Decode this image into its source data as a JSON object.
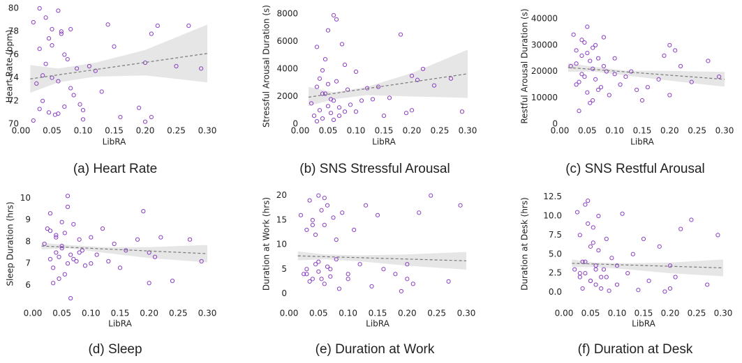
{
  "chart_data": [
    {
      "type": "scatter",
      "caption": "(a) Heart Rate",
      "xlabel": "LibRA",
      "ylabel": "Heart Rate (bpm)",
      "color": "#8a3fc2",
      "x": [
        0.02,
        0.025,
        0.03,
        0.03,
        0.035,
        0.04,
        0.04,
        0.045,
        0.05,
        0.05,
        0.055,
        0.06,
        0.06,
        0.065,
        0.07,
        0.07,
        0.075,
        0.08,
        0.085,
        0.09,
        0.095,
        0.1,
        0.03,
        0.05,
        0.06,
        0.045,
        0.035,
        0.08,
        0.1,
        0.11,
        0.12,
        0.13,
        0.14,
        0.15,
        0.16,
        0.19,
        0.2,
        0.2,
        0.21,
        0.21,
        0.22,
        0.25,
        0.27,
        0.29,
        0.02,
        0.065
      ],
      "values": [
        78.8,
        73.5,
        80,
        76.5,
        72,
        79.2,
        75.2,
        71,
        78.2,
        74,
        70.8,
        79.8,
        73.7,
        77.8,
        76,
        71.5,
        75.6,
        78.2,
        72.5,
        74.8,
        71.7,
        70.4,
        71.3,
        76.8,
        70.9,
        77.4,
        74.2,
        73.1,
        71.2,
        75,
        74.6,
        72.8,
        78.6,
        76.7,
        70.6,
        71.4,
        70.2,
        75.3,
        77.8,
        70.6,
        78.5,
        75,
        78.5,
        74.8,
        70.3,
        78
      ],
      "trend_x": [
        0.015,
        0.3
      ],
      "trend_y": [
        73.9,
        76.1
      ],
      "band_x": [
        0.015,
        0.06,
        0.12,
        0.2,
        0.3
      ],
      "band_lower": [
        72.7,
        73.6,
        74.1,
        74.2,
        73.6
      ],
      "band_upper": [
        75.1,
        74.8,
        75.3,
        76.4,
        78.6
      ],
      "xlim": [
        0,
        0.3
      ],
      "ylim": [
        70,
        80
      ],
      "xticks": [
        {
          "value": 0,
          "label": "0.00"
        },
        {
          "value": 0.05,
          "label": "0.05"
        },
        {
          "value": 0.1,
          "label": "0.10"
        },
        {
          "value": 0.15,
          "label": "0.15"
        },
        {
          "value": 0.2,
          "label": "0.20"
        },
        {
          "value": 0.25,
          "label": "0.25"
        },
        {
          "value": 0.3,
          "label": "0.30"
        }
      ],
      "yticks": [
        70,
        72,
        74,
        76,
        78,
        80
      ]
    },
    {
      "type": "scatter",
      "caption": "(b) SNS Stressful Arousal",
      "xlabel": "LibRA",
      "ylabel": "Stressful Arousal Duration (s)",
      "color": "#8a3fc2",
      "x": [
        0.02,
        0.025,
        0.03,
        0.03,
        0.035,
        0.04,
        0.04,
        0.045,
        0.05,
        0.05,
        0.055,
        0.06,
        0.06,
        0.065,
        0.065,
        0.07,
        0.075,
        0.08,
        0.085,
        0.09,
        0.03,
        0.045,
        0.05,
        0.055,
        0.06,
        0.07,
        0.04,
        0.035,
        0.08,
        0.1,
        0.1,
        0.11,
        0.12,
        0.13,
        0.14,
        0.15,
        0.16,
        0.18,
        0.19,
        0.2,
        0.2,
        0.21,
        0.22,
        0.24,
        0.27,
        0.29
      ],
      "values": [
        1500,
        600,
        2700,
        5600,
        1000,
        3900,
        400,
        2200,
        6800,
        1300,
        1800,
        7900,
        300,
        3100,
        7600,
        1200,
        5800,
        900,
        2500,
        1400,
        200,
        4700,
        2900,
        800,
        1700,
        600,
        2200,
        3300,
        4300,
        3800,
        900,
        1700,
        2600,
        1800,
        2700,
        600,
        1900,
        6500,
        800,
        1000,
        3500,
        3200,
        4000,
        2800,
        3300,
        900
      ],
      "trend_x": [
        0.015,
        0.3
      ],
      "trend_y": [
        1950,
        3650
      ],
      "band_x": [
        0.015,
        0.06,
        0.12,
        0.2,
        0.3
      ],
      "band_lower": [
        1300,
        1800,
        2100,
        2000,
        1900
      ],
      "band_upper": [
        2700,
        2300,
        2700,
        3700,
        5400
      ],
      "xlim": [
        0,
        0.3
      ],
      "ylim": [
        0,
        8400
      ],
      "xticks": [
        {
          "value": 0,
          "label": "0.00"
        },
        {
          "value": 0.05,
          "label": "0.05"
        },
        {
          "value": 0.1,
          "label": "0.10"
        },
        {
          "value": 0.15,
          "label": "0.15"
        },
        {
          "value": 0.2,
          "label": "0.20"
        },
        {
          "value": 0.25,
          "label": "0.25"
        },
        {
          "value": 0.3,
          "label": "0.30"
        }
      ],
      "yticks": [
        0,
        2000,
        4000,
        6000,
        8000
      ]
    },
    {
      "type": "scatter",
      "caption": "(c) SNS Restful Arousal",
      "xlabel": "LibRA",
      "ylabel": "Restful Arousal Duration (s)",
      "color": "#8a3fc2",
      "x": [
        0.02,
        0.025,
        0.03,
        0.03,
        0.035,
        0.04,
        0.04,
        0.045,
        0.05,
        0.05,
        0.055,
        0.06,
        0.06,
        0.065,
        0.065,
        0.07,
        0.075,
        0.08,
        0.085,
        0.09,
        0.03,
        0.045,
        0.05,
        0.055,
        0.06,
        0.07,
        0.04,
        0.035,
        0.08,
        0.1,
        0.1,
        0.11,
        0.12,
        0.13,
        0.14,
        0.15,
        0.16,
        0.18,
        0.19,
        0.2,
        0.2,
        0.21,
        0.22,
        0.24,
        0.27,
        0.29
      ],
      "values": [
        22000,
        34000,
        15000,
        28000,
        5000,
        26000,
        19000,
        31000,
        37000,
        12000,
        24000,
        21000,
        9000,
        30000,
        17000,
        25000,
        14000,
        33000,
        20000,
        11000,
        23000,
        18000,
        27000,
        8000,
        29000,
        13000,
        32000,
        16000,
        22000,
        25000,
        19000,
        15000,
        18000,
        20000,
        13000,
        9000,
        14000,
        17000,
        26000,
        11000,
        30000,
        28000,
        22000,
        16000,
        24000,
        18000
      ],
      "trend_x": [
        0.015,
        0.3
      ],
      "trend_y": [
        21500,
        17000
      ],
      "band_x": [
        0.015,
        0.06,
        0.12,
        0.2,
        0.3
      ],
      "band_lower": [
        19800,
        20000,
        18500,
        16500,
        14200
      ],
      "band_upper": [
        23200,
        21800,
        20300,
        20200,
        19800
      ],
      "xlim": [
        0,
        0.3
      ],
      "ylim": [
        0,
        44000
      ],
      "xticks": [
        {
          "value": 0,
          "label": "0.00"
        },
        {
          "value": 0.05,
          "label": "0.05"
        },
        {
          "value": 0.1,
          "label": "0.10"
        },
        {
          "value": 0.15,
          "label": "0.15"
        },
        {
          "value": 0.2,
          "label": "0.20"
        },
        {
          "value": 0.25,
          "label": "0.25"
        },
        {
          "value": 0.3,
          "label": "0.30"
        }
      ],
      "yticks": [
        0,
        10000,
        20000,
        30000,
        40000
      ]
    },
    {
      "type": "scatter",
      "caption": "(d) Sleep",
      "xlabel": "LibRA",
      "ylabel": "Sleep Duration (hrs)",
      "color": "#8a3fc2",
      "x": [
        0.02,
        0.025,
        0.03,
        0.03,
        0.035,
        0.04,
        0.04,
        0.045,
        0.05,
        0.05,
        0.055,
        0.06,
        0.06,
        0.065,
        0.065,
        0.07,
        0.075,
        0.08,
        0.085,
        0.09,
        0.03,
        0.045,
        0.05,
        0.055,
        0.06,
        0.07,
        0.04,
        0.035,
        0.08,
        0.1,
        0.1,
        0.11,
        0.12,
        0.13,
        0.14,
        0.15,
        0.16,
        0.18,
        0.19,
        0.2,
        0.2,
        0.21,
        0.22,
        0.24,
        0.27,
        0.29
      ],
      "values": [
        7.9,
        8.6,
        7.2,
        9.3,
        6.8,
        8.2,
        7.5,
        6.3,
        8.9,
        7.7,
        8.4,
        7,
        10.1,
        7.4,
        5.4,
        8.8,
        7.1,
        8.1,
        7.6,
        6.9,
        8.5,
        7.3,
        7.8,
        6.5,
        9.6,
        7.2,
        8.3,
        6.1,
        7.5,
        7,
        8.2,
        7.4,
        8.6,
        7.1,
        7.9,
        6.8,
        7.6,
        8.1,
        9.4,
        6.1,
        7.5,
        7.3,
        8.2,
        6.2,
        8.1,
        7.1
      ],
      "trend_x": [
        0.015,
        0.3
      ],
      "trend_y": [
        7.8,
        7.45
      ],
      "band_x": [
        0.015,
        0.06,
        0.12,
        0.2,
        0.3
      ],
      "band_lower": [
        7.65,
        7.7,
        7.5,
        7.25,
        7.05
      ],
      "band_upper": [
        7.95,
        7.85,
        7.75,
        7.75,
        7.85
      ],
      "xlim": [
        0,
        0.3
      ],
      "ylim": [
        5.5,
        10.3
      ],
      "xticks": [
        {
          "value": 0,
          "label": "0.00"
        },
        {
          "value": 0.05,
          "label": "0.05"
        },
        {
          "value": 0.1,
          "label": "0.10"
        },
        {
          "value": 0.15,
          "label": "0.15"
        },
        {
          "value": 0.2,
          "label": "0.20"
        },
        {
          "value": 0.25,
          "label": "0.25"
        },
        {
          "value": 0.3,
          "label": "0.30"
        }
      ],
      "yticks": [
        6,
        7,
        8,
        9,
        10
      ]
    },
    {
      "type": "scatter",
      "caption": "(e) Duration at Work",
      "xlabel": "LibRA",
      "ylabel": "Duration at Work (hrs)",
      "color": "#8a3fc2",
      "x": [
        0.02,
        0.025,
        0.03,
        0.03,
        0.035,
        0.04,
        0.04,
        0.045,
        0.05,
        0.05,
        0.055,
        0.06,
        0.06,
        0.065,
        0.065,
        0.07,
        0.075,
        0.08,
        0.085,
        0.09,
        0.03,
        0.045,
        0.05,
        0.055,
        0.06,
        0.07,
        0.04,
        0.035,
        0.08,
        0.1,
        0.1,
        0.11,
        0.12,
        0.13,
        0.14,
        0.15,
        0.16,
        0.18,
        0.19,
        0.2,
        0.2,
        0.21,
        0.22,
        0.24,
        0.27,
        0.29
      ],
      "values": [
        16,
        4,
        13,
        5,
        19,
        3,
        15,
        6,
        20,
        4.5,
        17,
        2,
        14,
        5.5,
        18,
        3.5,
        15.5,
        7,
        1,
        16.5,
        4,
        12,
        6.5,
        3,
        19.5,
        5,
        14,
        2.5,
        11,
        4,
        3,
        13,
        6,
        18,
        1.5,
        16,
        5,
        4,
        0.5,
        3,
        6,
        2,
        16.5,
        20,
        2.5,
        18
      ],
      "trend_x": [
        0.015,
        0.3
      ],
      "trend_y": [
        7.7,
        6.7
      ],
      "band_x": [
        0.015,
        0.06,
        0.12,
        0.2,
        0.3
      ],
      "band_lower": [
        6.8,
        7,
        6.6,
        5.7,
        4.9
      ],
      "band_upper": [
        8.6,
        8,
        7.8,
        8,
        8.5
      ],
      "xlim": [
        0,
        0.3
      ],
      "ylim": [
        -0.5,
        20.8
      ],
      "xticks": [
        {
          "value": 0,
          "label": "0.00"
        },
        {
          "value": 0.05,
          "label": "0.05"
        },
        {
          "value": 0.1,
          "label": "0.10"
        },
        {
          "value": 0.15,
          "label": "0.15"
        },
        {
          "value": 0.2,
          "label": "0.20"
        },
        {
          "value": 0.25,
          "label": "0.25"
        },
        {
          "value": 0.3,
          "label": "0.30"
        }
      ],
      "yticks": [
        0,
        5,
        10,
        15,
        20
      ]
    },
    {
      "type": "scatter",
      "caption": "(f) Duration at Desk",
      "xlabel": "LibRA",
      "ylabel": "Duration at Desk (hrs)",
      "color": "#8a3fc2",
      "x": [
        0.02,
        0.025,
        0.03,
        0.03,
        0.035,
        0.04,
        0.04,
        0.045,
        0.05,
        0.05,
        0.055,
        0.06,
        0.06,
        0.065,
        0.065,
        0.07,
        0.075,
        0.08,
        0.085,
        0.09,
        0.03,
        0.045,
        0.05,
        0.055,
        0.06,
        0.07,
        0.04,
        0.035,
        0.08,
        0.1,
        0.1,
        0.11,
        0.12,
        0.13,
        0.14,
        0.15,
        0.16,
        0.18,
        0.19,
        0.2,
        0.2,
        0.21,
        0.22,
        0.24,
        0.27,
        0.29
      ],
      "values": [
        3,
        10.5,
        2,
        7.5,
        0.5,
        4,
        2.5,
        12,
        6,
        1.5,
        8.5,
        3.5,
        1,
        5.5,
        10,
        2,
        3,
        7,
        0.2,
        4.5,
        2.5,
        9,
        1.5,
        6.5,
        3,
        0.5,
        11.5,
        4,
        2,
        3.5,
        1,
        10.3,
        2.5,
        5,
        0.3,
        7,
        1.5,
        6,
        0.1,
        3.5,
        0.5,
        2,
        8.3,
        9.5,
        1,
        7.5
      ],
      "trend_x": [
        0.015,
        0.3
      ],
      "trend_y": [
        3.8,
        3.2
      ],
      "band_x": [
        0.015,
        0.06,
        0.12,
        0.2,
        0.3
      ],
      "band_lower": [
        3.3,
        3.3,
        3,
        2.5,
        2.1
      ],
      "band_upper": [
        4.3,
        3.9,
        3.8,
        3.9,
        4.3
      ],
      "xlim": [
        0,
        0.3
      ],
      "ylim": [
        -0.5,
        13.2
      ],
      "xticks": [
        {
          "value": 0,
          "label": "0.00"
        },
        {
          "value": 0.05,
          "label": "0.05"
        },
        {
          "value": 0.1,
          "label": "0.10"
        },
        {
          "value": 0.15,
          "label": "0.15"
        },
        {
          "value": 0.2,
          "label": "0.20"
        },
        {
          "value": 0.25,
          "label": "0.25"
        },
        {
          "value": 0.3,
          "label": "0.30"
        }
      ],
      "yticks": [
        {
          "value": 0,
          "label": "0.0"
        },
        {
          "value": 2.5,
          "label": "2.5"
        },
        {
          "value": 5,
          "label": "5.0"
        },
        {
          "value": 7.5,
          "label": "7.5"
        },
        {
          "value": 10,
          "label": "10.0"
        },
        {
          "value": 12.5,
          "label": "12.5"
        }
      ]
    }
  ]
}
